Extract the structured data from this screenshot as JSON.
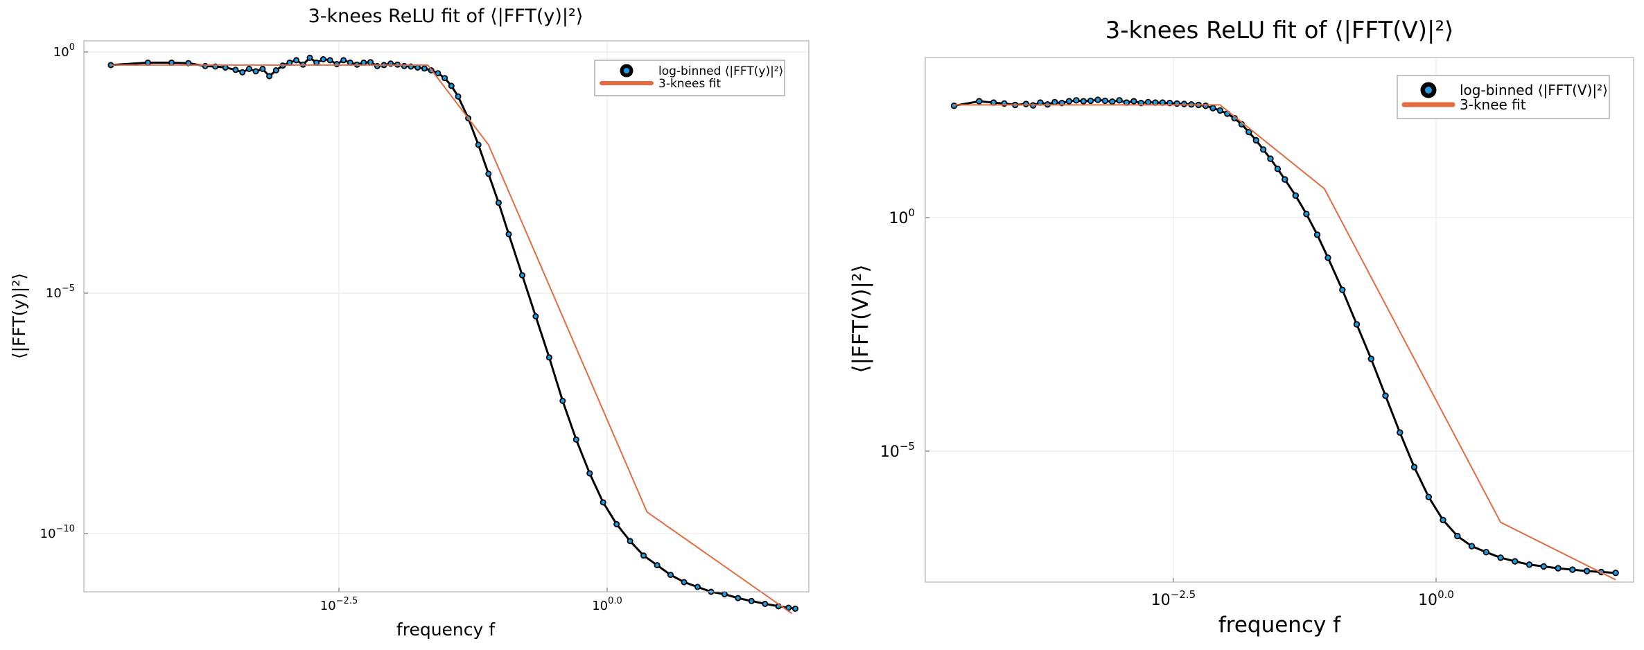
{
  "colors": {
    "fit": "#E46A3F",
    "marker_edge": "#000000",
    "marker_fill": "#1B9CE5",
    "frame": "#b0b0b0",
    "grid": "#e6e6e6"
  },
  "chart_data": [
    {
      "type": "line",
      "x_scale": "log10",
      "y_scale": "log10",
      "title": "3-knees ReLU fit of ⟨|FFT(y)|²⟩",
      "xlabel": "frequency f",
      "ylabel": "⟨|FFT(y)|²⟩",
      "xlim_log10": [
        -7.3,
        3.45
      ],
      "ylim_log10": [
        0.25,
        -11.15
      ],
      "x_ticks_log10": [
        -2.5,
        0.0
      ],
      "x_tick_labels": [
        {
          "base": "10",
          "exp": "−2.5"
        },
        {
          "base": "10",
          "exp": "0.0"
        }
      ],
      "y_ticks_log10": [
        0,
        -5,
        -10
      ],
      "y_tick_labels": [
        {
          "base": "10",
          "exp": "0"
        },
        {
          "base": "10",
          "exp": "−5"
        },
        {
          "base": "10",
          "exp": "−10"
        }
      ],
      "legend": {
        "position": "top-right",
        "entries": [
          "log-binned ⟨|FFT(y)|²⟩",
          "3-knees fit"
        ]
      },
      "grid": true,
      "series": [
        {
          "name": "log-binned ⟨|FFT(y)|²⟩",
          "kind": "scatter",
          "x_log10": [
            -6.9,
            -6.35,
            -6.0,
            -5.75,
            -5.5,
            -5.35,
            -5.2,
            -5.05,
            -4.95,
            -4.85,
            -4.75,
            -4.65,
            -4.55,
            -4.45,
            -4.35,
            -4.25,
            -4.15,
            -4.05,
            -3.95,
            -3.85,
            -3.75,
            -3.65,
            -3.55,
            -3.45,
            -3.35,
            -3.25,
            -3.15,
            -3.05,
            -2.95,
            -2.85,
            -2.75,
            -2.65,
            -2.55,
            -2.45,
            -2.35,
            -2.25,
            -2.15,
            -2.05,
            -1.95,
            -1.85,
            -1.75,
            -1.6,
            -1.45,
            -1.3,
            -1.15,
            -1.0,
            -0.8,
            -0.6,
            -0.4,
            -0.2,
            0.0,
            0.2,
            0.4,
            0.6,
            0.8,
            1.0,
            1.2,
            1.4,
            1.6,
            1.8,
            2.0,
            2.2,
            2.4,
            2.6,
            2.8,
            3.0,
            3.15,
            3.25
          ],
          "y_log10": [
            -0.25,
            -0.2,
            -0.2,
            -0.21,
            -0.27,
            -0.28,
            -0.3,
            -0.35,
            -0.4,
            -0.33,
            -0.38,
            -0.33,
            -0.48,
            -0.36,
            -0.26,
            -0.2,
            -0.15,
            -0.24,
            -0.1,
            -0.2,
            -0.13,
            -0.15,
            -0.23,
            -0.15,
            -0.2,
            -0.24,
            -0.2,
            -0.19,
            -0.27,
            -0.25,
            -0.22,
            -0.24,
            -0.27,
            -0.28,
            -0.3,
            -0.32,
            -0.36,
            -0.42,
            -0.52,
            -0.68,
            -0.9,
            -1.35,
            -1.9,
            -2.5,
            -3.1,
            -3.75,
            -4.6,
            -5.45,
            -6.3,
            -7.2,
            -8.0,
            -8.7,
            -9.3,
            -9.75,
            -10.1,
            -10.4,
            -10.6,
            -10.8,
            -10.95,
            -11.05,
            -11.15,
            -11.2,
            -11.28,
            -11.34,
            -11.4,
            -11.45,
            -11.48,
            -11.5
          ]
        },
        {
          "name": "3-knees fit",
          "kind": "line",
          "x_log10": [
            -6.9,
            -2.2,
            -1.3,
            1.05,
            3.2
          ],
          "y_log10": [
            -0.25,
            -0.25,
            -1.9,
            -9.5,
            -11.6
          ]
        }
      ]
    },
    {
      "type": "line",
      "x_scale": "log10",
      "y_scale": "log10",
      "title": "3-knees ReLU fit of ⟨|FFT(V)|²⟩",
      "xlabel": "frequency f",
      "ylabel": "⟨|FFT(V)|²⟩",
      "xlim_log10": [
        -6.4,
        3.45
      ],
      "ylim_log10": [
        4.0,
        -7.4
      ],
      "x_ticks_log10": [
        -2.5,
        0.0
      ],
      "x_tick_labels": [
        {
          "base": "10",
          "exp": "−2.5"
        },
        {
          "base": "10",
          "exp": "0.0"
        }
      ],
      "y_ticks_log10": [
        0,
        -5
      ],
      "y_tick_labels": [
        {
          "base": "10",
          "exp": "0"
        },
        {
          "base": "10",
          "exp": "−5"
        }
      ],
      "legend": {
        "position": "top-right",
        "entries": [
          "log-binned ⟨|FFT(V)|²⟩",
          "3-knee fit"
        ]
      },
      "grid": true,
      "series": [
        {
          "name": "log-binned ⟨|FFT(V)|²⟩",
          "kind": "scatter",
          "x_log10": [
            -6.0,
            -5.65,
            -5.45,
            -5.3,
            -5.15,
            -5.0,
            -4.9,
            -4.8,
            -4.7,
            -4.6,
            -4.5,
            -4.4,
            -4.3,
            -4.2,
            -4.1,
            -4.0,
            -3.9,
            -3.8,
            -3.7,
            -3.6,
            -3.5,
            -3.4,
            -3.3,
            -3.2,
            -3.1,
            -3.0,
            -2.9,
            -2.8,
            -2.7,
            -2.6,
            -2.5,
            -2.4,
            -2.3,
            -2.2,
            -2.1,
            -2.0,
            -1.9,
            -1.8,
            -1.7,
            -1.6,
            -1.5,
            -1.4,
            -1.25,
            -1.1,
            -0.95,
            -0.8,
            -0.6,
            -0.4,
            -0.2,
            0.0,
            0.2,
            0.4,
            0.6,
            0.8,
            1.0,
            1.2,
            1.4,
            1.6,
            1.8,
            2.0,
            2.2,
            2.4,
            2.6,
            2.8,
            3.0,
            3.2
          ],
          "y_log10": [
            2.95,
            3.05,
            3.02,
            3.0,
            2.97,
            2.99,
            2.96,
            3.02,
            2.98,
            3.03,
            3.01,
            3.05,
            3.07,
            3.05,
            3.06,
            3.08,
            3.06,
            3.04,
            3.07,
            3.02,
            3.05,
            3.01,
            3.03,
            3.02,
            3.02,
            3.01,
            3.0,
            2.99,
            2.98,
            2.97,
            2.95,
            2.9,
            2.85,
            2.78,
            2.68,
            2.55,
            2.38,
            2.2,
            2.0,
            1.8,
            1.58,
            1.35,
            1.0,
            0.6,
            0.15,
            -0.35,
            -1.05,
            -1.8,
            -2.55,
            -3.35,
            -4.15,
            -4.9,
            -5.55,
            -6.05,
            -6.4,
            -6.62,
            -6.75,
            -6.87,
            -6.95,
            -7.02,
            -7.06,
            -7.1,
            -7.13,
            -7.16,
            -7.18,
            -7.2
          ]
        },
        {
          "name": "3-knee fit",
          "kind": "line",
          "x_log10": [
            -6.0,
            -2.3,
            -0.85,
            1.6,
            3.2
          ],
          "y_log10": [
            2.97,
            2.97,
            1.15,
            -6.1,
            -7.35
          ]
        }
      ]
    }
  ]
}
